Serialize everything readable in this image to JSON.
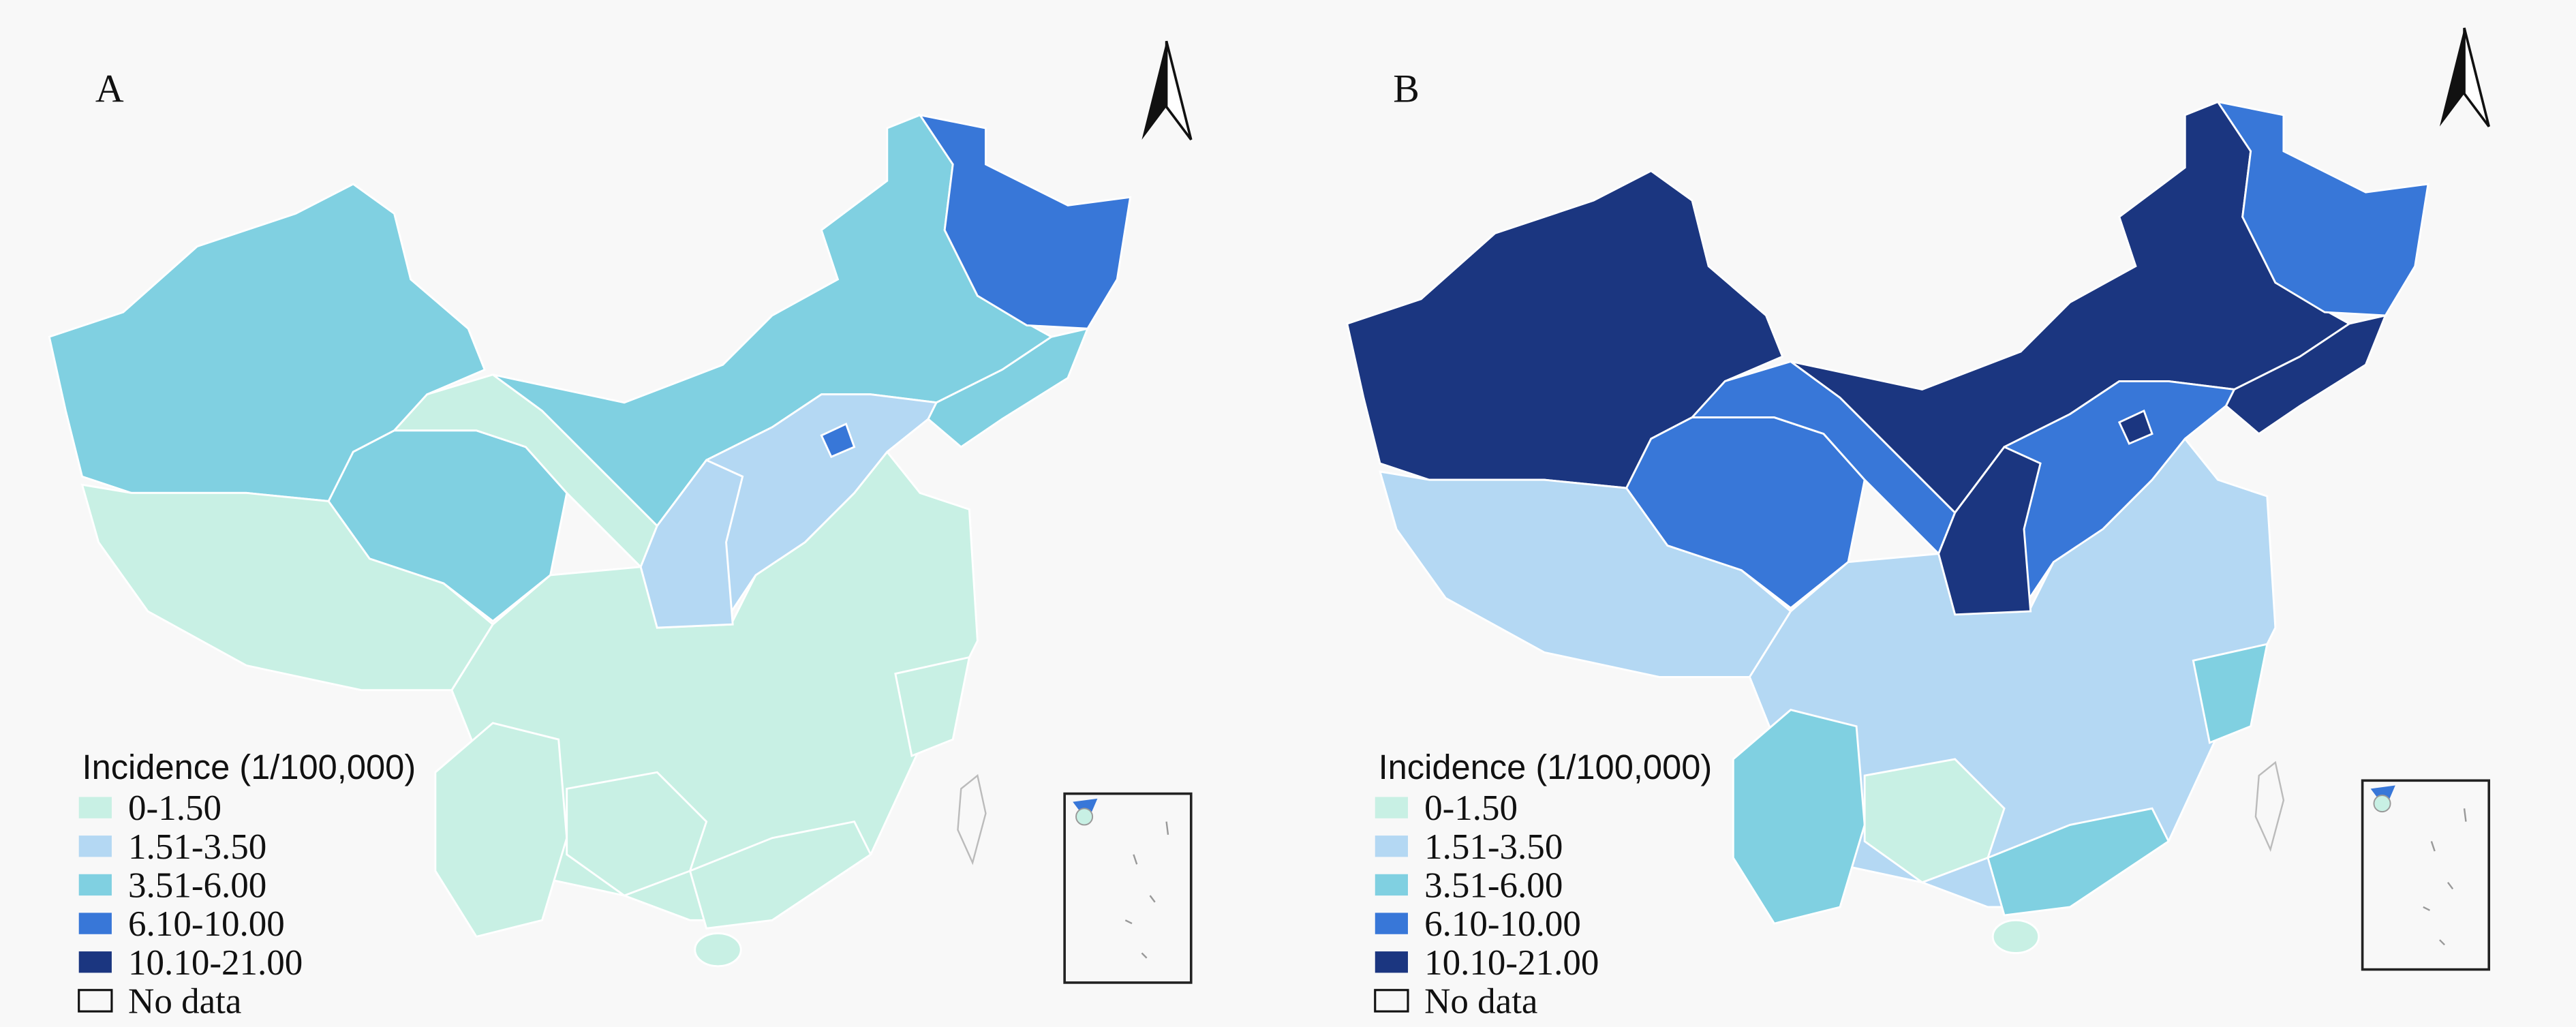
{
  "panels": [
    {
      "label": "A",
      "legend": {
        "title": "Incidence (1/100,000)",
        "items": [
          {
            "label": "0-1.50",
            "color": "#c8f0e4"
          },
          {
            "label": "1.51-3.50",
            "color": "#b4d8f3"
          },
          {
            "label": "3.51-6.00",
            "color": "#80d0e1"
          },
          {
            "label": "6.10-10.00",
            "color": "#3877d8"
          },
          {
            "label": "10.10-21.00",
            "color": "#1b3680"
          }
        ],
        "no_data": "No data"
      }
    },
    {
      "label": "B",
      "legend": {
        "title": "Incidence (1/100,000)",
        "items": [
          {
            "label": "0-1.50",
            "color": "#c8f0e4"
          },
          {
            "label": "1.51-3.50",
            "color": "#b4d8f3"
          },
          {
            "label": "3.51-6.00",
            "color": "#80d0e1"
          },
          {
            "label": "6.10-10.00",
            "color": "#3877d8"
          },
          {
            "label": "10.10-21.00",
            "color": "#1b3680"
          }
        ],
        "no_data": "No data"
      }
    }
  ]
}
